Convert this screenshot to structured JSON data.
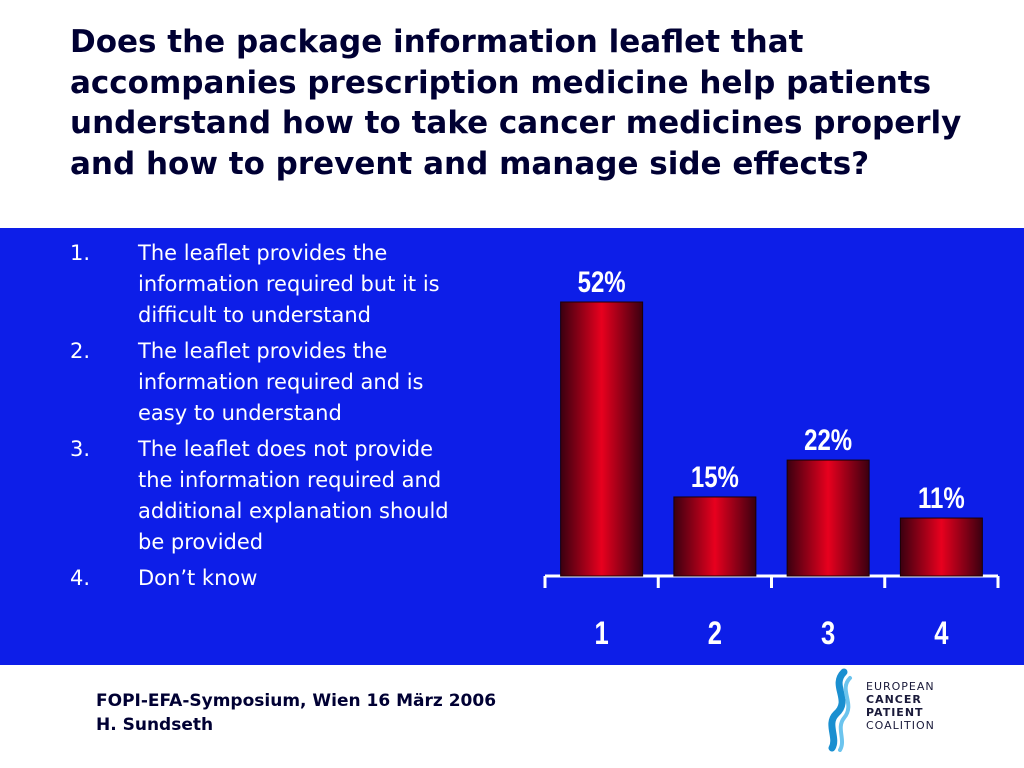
{
  "title": "Does the package information leaflet that accompanies prescription medicine help patients understand how to take cancer medicines properly and how to prevent and manage side effects?",
  "options": [
    {
      "num": "1.",
      "text": "The leaflet provides the information required but it is difficult to understand"
    },
    {
      "num": "2.",
      "text": "The leaflet provides the information required and is easy to understand"
    },
    {
      "num": "3.",
      "text": "The leaflet does not provide the information required and additional explanation should be provided"
    },
    {
      "num": "4.",
      "text": "Don’t know"
    }
  ],
  "chart_data": {
    "type": "bar",
    "categories": [
      "1",
      "2",
      "3",
      "4"
    ],
    "values": [
      52,
      15,
      22,
      11
    ],
    "data_labels": [
      "52%",
      "15%",
      "22%",
      "11%"
    ],
    "title": "",
    "xlabel": "",
    "ylabel": "",
    "ylim": [
      0,
      52
    ],
    "grid": false,
    "bar_color": "#cc0022",
    "background": "#0d1ee8"
  },
  "footer": {
    "line1": "FOPI-EFA-Symposium, Wien 16 März 2006",
    "line2": "H. Sundseth"
  },
  "logo": {
    "line1": "EUROPEAN",
    "line2": "CANCER",
    "line3": "PATIENT",
    "line4": "COALITION"
  }
}
